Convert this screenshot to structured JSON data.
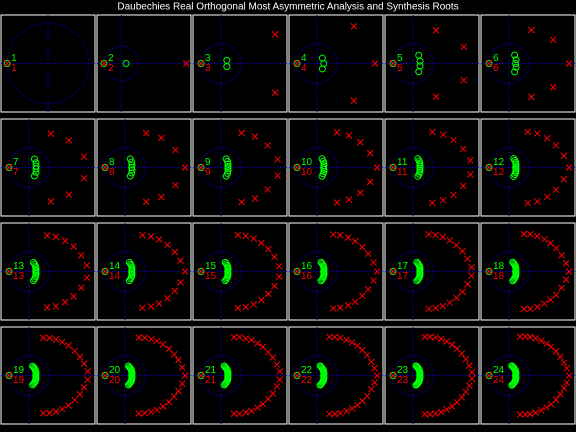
{
  "title": "Daubechies Real Orthogonal Most Asymmetric Analysis and Synthesis Roots",
  "colors": {
    "analysis": "#00ff00",
    "synthesis": "#ff0000",
    "axes": "#0000ff",
    "frame": "#ffffff",
    "title": "#ffffff"
  },
  "chart_data": [
    {
      "type": "scatter",
      "label": 1,
      "xlim": [
        -1.15,
        1.15
      ],
      "ylim": [
        -1.2,
        1.2
      ],
      "repeated_root": -1,
      "unit_circle": 1
    },
    {
      "type": "scatter",
      "label": 2,
      "xlim": [
        -1.4,
        4
      ],
      "ylim": [
        -2.8,
        2.8
      ],
      "repeated_root": -1,
      "unit_circle": 1,
      "theta": [
        0
      ],
      "r_synthesis": [
        3.73
      ],
      "r_analysis": [
        0.27
      ]
    },
    {
      "type": "scatter",
      "label": 3,
      "xlim": [
        -1.4,
        3.3
      ],
      "ylim": [
        -2.4,
        2.4
      ],
      "repeated_root": -1,
      "unit_circle": 1,
      "theta": [
        28,
        -28
      ],
      "r_synthesis": [
        3.07,
        3.07
      ],
      "r_analysis": [
        0.33,
        0.33
      ]
    },
    {
      "type": "scatter",
      "label": 4,
      "xlim": [
        -1.4,
        3.3
      ],
      "ylim": [
        -2.4,
        2.4
      ],
      "repeated_root": -1,
      "unit_circle": 1,
      "theta": [
        0,
        45,
        -45
      ],
      "r_synthesis": [
        2.9,
        2.6,
        2.6
      ],
      "r_analysis": [
        0.34,
        0.38,
        0.38
      ]
    },
    {
      "type": "scatter",
      "label": 5,
      "xlim": [
        -1.4,
        3.3
      ],
      "ylim": [
        -2.4,
        2.4
      ],
      "repeated_root": -1,
      "unit_circle": 1,
      "theta": [
        18,
        -18,
        55,
        -55
      ],
      "r_synthesis": [
        2.67,
        2.67,
        2,
        2
      ],
      "r_analysis": [
        0.37,
        0.37,
        0.5,
        0.5
      ]
    },
    {
      "type": "scatter",
      "label": 6,
      "xlim": [
        -1.4,
        3.3
      ],
      "ylim": [
        -2.4,
        2.4
      ],
      "repeated_root": -1,
      "unit_circle": 1,
      "theta": [
        0,
        28,
        -28,
        56,
        -56
      ],
      "r_synthesis": [
        3,
        2.5,
        2.5,
        2,
        2
      ],
      "r_analysis": [
        0.33,
        0.4,
        0.4,
        0.5,
        0.5
      ]
    },
    {
      "type": "scatter",
      "label": 7,
      "xlim": [
        -1.4,
        3.3
      ],
      "ylim": [
        -2.4,
        2.4
      ],
      "repeated_root": -1,
      "unit_circle": 1,
      "theta": [
        11,
        -11,
        34,
        -34,
        57,
        -57
      ],
      "r_synthesis": [
        2.8,
        2.8,
        2.4,
        2.4,
        2,
        2
      ],
      "r_analysis": [
        0.36,
        0.36,
        0.42,
        0.42,
        0.5,
        0.5
      ]
    },
    {
      "type": "scatter",
      "label": 8,
      "xlim": [
        -1.4,
        3.3
      ],
      "ylim": [
        -2.4,
        2.4
      ],
      "repeated_root": -1,
      "unit_circle": 1,
      "theta": [
        0,
        19,
        -19,
        39,
        -39,
        58,
        -58
      ],
      "r_synthesis": [
        3,
        2.67,
        2.67,
        2.33,
        2.33,
        2,
        2
      ],
      "r_analysis": [
        0.33,
        0.37,
        0.37,
        0.43,
        0.43,
        0.5,
        0.5
      ]
    },
    {
      "type": "scatter",
      "label": 9,
      "xlim": [
        -1.4,
        3.3
      ],
      "ylim": [
        -2.4,
        2.4
      ],
      "repeated_root": -1,
      "unit_circle": 1,
      "theta": [
        8,
        -8,
        25,
        -25,
        42,
        -42,
        59,
        -59
      ],
      "r_synthesis": [
        2.86,
        2.86,
        2.57,
        2.57,
        2.29,
        2.29,
        2,
        2
      ],
      "r_analysis": [
        0.35,
        0.35,
        0.39,
        0.39,
        0.44,
        0.44,
        0.5,
        0.5
      ]
    },
    {
      "type": "scatter",
      "label": 10,
      "xlim": [
        -1.4,
        3.3
      ],
      "ylim": [
        -2.4,
        2.4
      ],
      "repeated_root": -1,
      "unit_circle": 1,
      "theta": [
        0,
        15,
        -15,
        30,
        -30,
        45,
        -45,
        60,
        -60
      ],
      "r_synthesis": [
        3,
        2.75,
        2.75,
        2.5,
        2.5,
        2.25,
        2.25,
        2,
        2
      ],
      "r_analysis": [
        0.33,
        0.36,
        0.36,
        0.4,
        0.4,
        0.44,
        0.44,
        0.5,
        0.5
      ]
    },
    {
      "type": "scatter",
      "label": 11,
      "xlim": [
        -1.4,
        3.3
      ],
      "ylim": [
        -2.4,
        2.4
      ],
      "repeated_root": -1,
      "unit_circle": 1,
      "theta": [
        7,
        -7,
        20,
        -20,
        34,
        -34,
        47,
        -47,
        61,
        -61
      ],
      "r_synthesis": [
        2.89,
        2.89,
        2.67,
        2.67,
        2.44,
        2.44,
        2.22,
        2.22,
        2,
        2
      ],
      "r_analysis": [
        0.35,
        0.35,
        0.37,
        0.37,
        0.41,
        0.41,
        0.45,
        0.45,
        0.5,
        0.5
      ]
    },
    {
      "type": "scatter",
      "label": 12,
      "xlim": [
        -1.4,
        3.3
      ],
      "ylim": [
        -2.4,
        2.4
      ],
      "repeated_root": -1,
      "unit_circle": 1,
      "theta": [
        0,
        12,
        -12,
        25,
        -25,
        37,
        -37,
        50,
        -50,
        62,
        -62
      ],
      "r_synthesis": [
        3,
        2.8,
        2.8,
        2.6,
        2.6,
        2.4,
        2.4,
        2.2,
        2.2,
        2,
        2
      ],
      "r_analysis": [
        0.33,
        0.36,
        0.36,
        0.38,
        0.38,
        0.42,
        0.42,
        0.45,
        0.45,
        0.5,
        0.5
      ]
    },
    {
      "type": "scatter",
      "label": 13,
      "xlim": [
        -1.4,
        3.3
      ],
      "ylim": [
        -2.4,
        2.4
      ],
      "repeated_root": -1,
      "unit_circle": 1,
      "theta": [
        6,
        -6,
        17,
        -17,
        29,
        -29,
        40,
        -40,
        52,
        -52,
        63,
        -63
      ],
      "r_synthesis": [
        2.91,
        2.91,
        2.73,
        2.73,
        2.55,
        2.55,
        2.36,
        2.36,
        2.18,
        2.18,
        2,
        2
      ],
      "r_analysis": [
        0.34,
        0.34,
        0.37,
        0.37,
        0.39,
        0.39,
        0.42,
        0.42,
        0.46,
        0.46,
        0.5,
        0.5
      ]
    },
    {
      "type": "scatter",
      "label": 14,
      "xlim": [
        -1.4,
        3.3
      ],
      "ylim": [
        -2.4,
        2.4
      ],
      "repeated_root": -1,
      "unit_circle": 1,
      "theta": [
        0,
        11,
        -11,
        21,
        -21,
        32,
        -32,
        43,
        -43,
        53,
        -53,
        64,
        -64
      ],
      "r_synthesis": [
        3,
        2.83,
        2.83,
        2.67,
        2.67,
        2.5,
        2.5,
        2.33,
        2.33,
        2.17,
        2.17,
        2,
        2
      ],
      "r_analysis": [
        0.33,
        0.35,
        0.35,
        0.37,
        0.37,
        0.4,
        0.4,
        0.43,
        0.43,
        0.46,
        0.46,
        0.5,
        0.5
      ]
    },
    {
      "type": "scatter",
      "label": 15,
      "xlim": [
        -1.4,
        3.3
      ],
      "ylim": [
        -2.4,
        2.4
      ],
      "repeated_root": -1,
      "unit_circle": 1,
      "theta": [
        5,
        -5,
        15,
        -15,
        25,
        -25,
        35,
        -35,
        45,
        -45,
        55,
        -55,
        65,
        -65
      ],
      "r_synthesis": [
        2.92,
        2.92,
        2.77,
        2.77,
        2.62,
        2.62,
        2.46,
        2.46,
        2.31,
        2.31,
        2.15,
        2.15,
        2,
        2
      ],
      "r_analysis": [
        0.34,
        0.34,
        0.36,
        0.36,
        0.38,
        0.38,
        0.41,
        0.41,
        0.43,
        0.43,
        0.47,
        0.47,
        0.5,
        0.5
      ]
    },
    {
      "type": "scatter",
      "label": 16,
      "xlim": [
        -1.4,
        3.3
      ],
      "ylim": [
        -2.4,
        2.4
      ],
      "repeated_root": -1,
      "unit_circle": 1,
      "theta": [
        0,
        9,
        -9,
        19,
        -19,
        28,
        -28,
        38,
        -38,
        47,
        -47,
        57,
        -57,
        66,
        -66
      ],
      "r_synthesis": [
        3,
        2.86,
        2.86,
        2.71,
        2.71,
        2.57,
        2.57,
        2.43,
        2.43,
        2.29,
        2.29,
        2.14,
        2.14,
        2,
        2
      ],
      "r_analysis": [
        0.33,
        0.35,
        0.35,
        0.37,
        0.37,
        0.39,
        0.39,
        0.41,
        0.41,
        0.44,
        0.44,
        0.47,
        0.47,
        0.5,
        0.5
      ]
    },
    {
      "type": "scatter",
      "label": 17,
      "xlim": [
        -1.4,
        3.3
      ],
      "ylim": [
        -2.4,
        2.4
      ],
      "repeated_root": -1,
      "unit_circle": 1,
      "theta": [
        4,
        -4,
        13,
        -13,
        22,
        -22,
        31,
        -31,
        40,
        -40,
        49,
        -49,
        58,
        -58,
        67,
        -67
      ],
      "r_synthesis": [
        2.93,
        2.93,
        2.8,
        2.8,
        2.67,
        2.67,
        2.53,
        2.53,
        2.4,
        2.4,
        2.27,
        2.27,
        2.13,
        2.13,
        2,
        2
      ],
      "r_analysis": [
        0.34,
        0.34,
        0.36,
        0.36,
        0.37,
        0.37,
        0.4,
        0.4,
        0.42,
        0.42,
        0.44,
        0.44,
        0.47,
        0.47,
        0.5,
        0.5
      ]
    },
    {
      "type": "scatter",
      "label": 18,
      "xlim": [
        -1.4,
        3.3
      ],
      "ylim": [
        -2.4,
        2.4
      ],
      "repeated_root": -1,
      "unit_circle": 1,
      "theta": [
        0,
        8,
        -8,
        17,
        -17,
        26,
        -26,
        34,
        -34,
        42,
        -42,
        51,
        -51,
        60,
        -60,
        68,
        -68
      ],
      "r_synthesis": [
        3,
        2.88,
        2.88,
        2.75,
        2.75,
        2.63,
        2.63,
        2.5,
        2.5,
        2.38,
        2.38,
        2.25,
        2.25,
        2.13,
        2.13,
        2,
        2
      ],
      "r_analysis": [
        0.33,
        0.35,
        0.35,
        0.36,
        0.36,
        0.38,
        0.38,
        0.4,
        0.4,
        0.42,
        0.42,
        0.44,
        0.44,
        0.47,
        0.47,
        0.5,
        0.5
      ]
    },
    {
      "type": "scatter",
      "label": 19,
      "xlim": [
        -1.4,
        3.3
      ],
      "ylim": [
        -2.4,
        2.4
      ],
      "repeated_root": -1,
      "unit_circle": 1,
      "theta": [
        4,
        -4,
        12,
        -12,
        20,
        -20,
        28,
        -28,
        37,
        -37,
        45,
        -45,
        53,
        -53,
        61,
        -61,
        69,
        -69
      ],
      "r_synthesis": [
        2.94,
        2.94,
        2.82,
        2.82,
        2.71,
        2.71,
        2.59,
        2.59,
        2.47,
        2.47,
        2.35,
        2.35,
        2.24,
        2.24,
        2.12,
        2.12,
        2,
        2
      ],
      "r_analysis": [
        0.34,
        0.34,
        0.35,
        0.35,
        0.37,
        0.37,
        0.39,
        0.39,
        0.4,
        0.4,
        0.43,
        0.43,
        0.45,
        0.45,
        0.47,
        0.47,
        0.5,
        0.5
      ]
    },
    {
      "type": "scatter",
      "label": 20,
      "xlim": [
        -1.4,
        3.3
      ],
      "ylim": [
        -2.4,
        2.4
      ],
      "repeated_root": -1,
      "unit_circle": 1,
      "theta": [
        0,
        8,
        -8,
        16,
        -16,
        23,
        -23,
        31,
        -31,
        39,
        -39,
        47,
        -47,
        54,
        -54,
        62,
        -62,
        70,
        -70
      ],
      "r_synthesis": [
        3,
        2.89,
        2.89,
        2.78,
        2.78,
        2.67,
        2.67,
        2.56,
        2.56,
        2.44,
        2.44,
        2.33,
        2.33,
        2.22,
        2.22,
        2.11,
        2.11,
        2,
        2
      ],
      "r_analysis": [
        0.33,
        0.35,
        0.35,
        0.36,
        0.36,
        0.37,
        0.37,
        0.39,
        0.39,
        0.41,
        0.41,
        0.43,
        0.43,
        0.45,
        0.45,
        0.47,
        0.47,
        0.5,
        0.5
      ]
    },
    {
      "type": "scatter",
      "label": 21,
      "xlim": [
        -1.4,
        3.3
      ],
      "ylim": [
        -2.4,
        2.4
      ],
      "repeated_root": -1,
      "unit_circle": 1,
      "theta": [
        4,
        -4,
        11,
        -11,
        19,
        -19,
        26,
        -26,
        34,
        -34,
        41,
        -41,
        49,
        -49,
        56,
        -56,
        64,
        -64,
        71,
        -71
      ],
      "r_synthesis": [
        2.95,
        2.95,
        2.84,
        2.84,
        2.74,
        2.74,
        2.63,
        2.63,
        2.53,
        2.53,
        2.42,
        2.42,
        2.32,
        2.32,
        2.21,
        2.21,
        2.11,
        2.11,
        2,
        2
      ],
      "r_analysis": [
        0.34,
        0.34,
        0.35,
        0.35,
        0.36,
        0.36,
        0.38,
        0.38,
        0.4,
        0.4,
        0.41,
        0.41,
        0.43,
        0.43,
        0.45,
        0.45,
        0.47,
        0.47,
        0.5,
        0.5
      ]
    },
    {
      "type": "scatter",
      "label": 22,
      "xlim": [
        -1.4,
        3.3
      ],
      "ylim": [
        -2.4,
        2.4
      ],
      "repeated_root": -1,
      "unit_circle": 1,
      "theta": [
        0,
        7,
        -7,
        14,
        -14,
        22,
        -22,
        29,
        -29,
        36,
        -36,
        43,
        -43,
        50,
        -50,
        58,
        -58,
        65,
        -65,
        72,
        -72
      ],
      "r_synthesis": [
        3,
        2.9,
        2.9,
        2.8,
        2.8,
        2.7,
        2.7,
        2.6,
        2.6,
        2.5,
        2.5,
        2.4,
        2.4,
        2.3,
        2.3,
        2.2,
        2.2,
        2.1,
        2.1,
        2,
        2
      ],
      "r_analysis": [
        0.33,
        0.34,
        0.34,
        0.36,
        0.36,
        0.37,
        0.37,
        0.38,
        0.38,
        0.4,
        0.4,
        0.42,
        0.42,
        0.43,
        0.43,
        0.45,
        0.45,
        0.48,
        0.48,
        0.5,
        0.5
      ]
    },
    {
      "type": "scatter",
      "label": 23,
      "xlim": [
        -1.4,
        3.3
      ],
      "ylim": [
        -2.4,
        2.4
      ],
      "repeated_root": -1,
      "unit_circle": 1,
      "theta": [
        3,
        -3,
        10,
        -10,
        17,
        -17,
        24,
        -24,
        31,
        -31,
        38,
        -38,
        45,
        -45,
        52,
        -52,
        59,
        -59,
        66,
        -66,
        73,
        -73
      ],
      "r_synthesis": [
        2.95,
        2.95,
        2.86,
        2.86,
        2.76,
        2.76,
        2.67,
        2.67,
        2.57,
        2.57,
        2.48,
        2.48,
        2.38,
        2.38,
        2.29,
        2.29,
        2.19,
        2.19,
        2.1,
        2.1,
        2,
        2
      ],
      "r_analysis": [
        0.34,
        0.34,
        0.35,
        0.35,
        0.36,
        0.36,
        0.37,
        0.37,
        0.39,
        0.39,
        0.4,
        0.4,
        0.42,
        0.42,
        0.44,
        0.44,
        0.46,
        0.46,
        0.48,
        0.48,
        0.5,
        0.5
      ]
    },
    {
      "type": "scatter",
      "label": 24,
      "xlim": [
        -1.4,
        3.3
      ],
      "ylim": [
        -2.4,
        2.4
      ],
      "repeated_root": -1,
      "unit_circle": 1,
      "theta": [
        0,
        7,
        -7,
        13,
        -13,
        20,
        -20,
        27,
        -27,
        34,
        -34,
        40,
        -40,
        47,
        -47,
        54,
        -54,
        61,
        -61,
        67,
        -67,
        74,
        -74
      ],
      "r_synthesis": [
        3,
        2.91,
        2.91,
        2.82,
        2.82,
        2.73,
        2.73,
        2.64,
        2.64,
        2.55,
        2.55,
        2.45,
        2.45,
        2.36,
        2.36,
        2.27,
        2.27,
        2.18,
        2.18,
        2.09,
        2.09,
        2,
        2
      ],
      "r_analysis": [
        0.33,
        0.34,
        0.34,
        0.35,
        0.35,
        0.37,
        0.37,
        0.38,
        0.38,
        0.39,
        0.39,
        0.41,
        0.41,
        0.42,
        0.42,
        0.44,
        0.44,
        0.46,
        0.46,
        0.48,
        0.48,
        0.5,
        0.5
      ]
    }
  ]
}
